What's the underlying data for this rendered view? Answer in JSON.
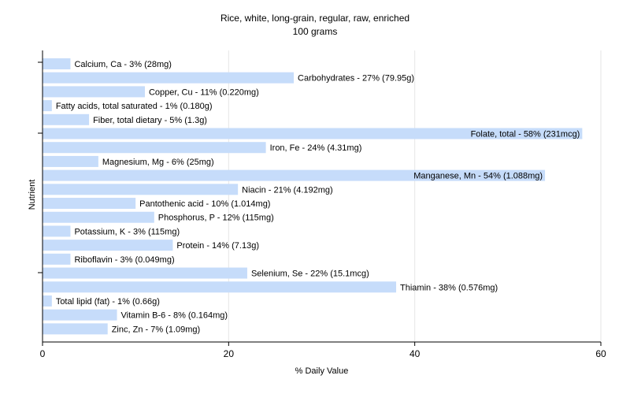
{
  "chart_data": {
    "type": "bar",
    "orientation": "horizontal",
    "title": "Rice, white, long-grain, regular, raw, enriched",
    "subtitle": "100 grams",
    "xlabel": "% Daily Value",
    "ylabel": "Nutrient",
    "xlim": [
      0,
      60
    ],
    "xticks": [
      0,
      20,
      40,
      60
    ],
    "grid": true,
    "bar_color": "#c6dcfa",
    "categories": [
      "Calcium, Ca",
      "Carbohydrates",
      "Copper, Cu",
      "Fatty acids, total saturated",
      "Fiber, total dietary",
      "Folate, total",
      "Iron, Fe",
      "Magnesium, Mg",
      "Manganese, Mn",
      "Niacin",
      "Pantothenic acid",
      "Phosphorus, P",
      "Potassium, K",
      "Protein",
      "Riboflavin",
      "Selenium, Se",
      "Thiamin",
      "Total lipid (fat)",
      "Vitamin B-6",
      "Zinc, Zn"
    ],
    "values": [
      3,
      27,
      11,
      1,
      5,
      58,
      24,
      6,
      54,
      21,
      10,
      12,
      3,
      14,
      3,
      22,
      38,
      1,
      8,
      7
    ],
    "labels": [
      "Calcium, Ca - 3% (28mg)",
      "Carbohydrates - 27% (79.95g)",
      "Copper, Cu - 11% (0.220mg)",
      "Fatty acids, total saturated - 1% (0.180g)",
      "Fiber, total dietary - 5% (1.3g)",
      "Folate, total - 58% (231mcg)",
      "Iron, Fe - 24% (4.31mg)",
      "Magnesium, Mg - 6% (25mg)",
      "Manganese, Mn - 54% (1.088mg)",
      "Niacin - 21% (4.192mg)",
      "Pantothenic acid - 10% (1.014mg)",
      "Phosphorus, P - 12% (115mg)",
      "Potassium, K - 3% (115mg)",
      "Protein - 14% (7.13g)",
      "Riboflavin - 3% (0.049mg)",
      "Selenium, Se - 22% (15.1mcg)",
      "Thiamin - 38% (0.576mg)",
      "Total lipid (fat) - 1% (0.66g)",
      "Vitamin B-6 - 8% (0.164mg)",
      "Zinc, Zn - 7% (1.09mg)"
    ]
  }
}
